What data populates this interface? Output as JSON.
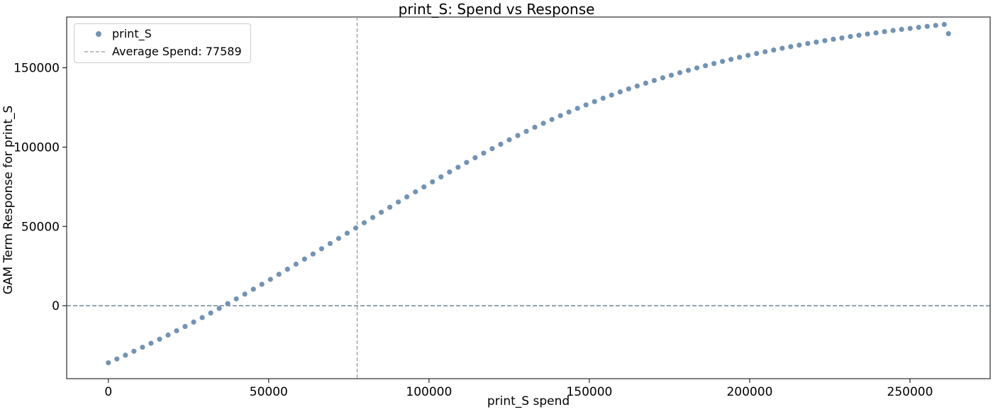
{
  "chart_data": {
    "type": "scatter",
    "title": "print_S: Spend vs Response",
    "xlabel": "print_S spend",
    "ylabel": "GAM Term Response for print_S",
    "xlim": [
      -13000,
      275000
    ],
    "ylim": [
      -46000,
      182000
    ],
    "xticks": [
      0,
      50000,
      100000,
      150000,
      200000,
      250000
    ],
    "yticks": [
      0,
      50000,
      100000,
      150000
    ],
    "grid": false,
    "legend_position": "top-left",
    "series": [
      {
        "name": "print_S",
        "color": "#7393b3",
        "points": [
          [
            0,
            -36000
          ],
          [
            2660,
            -33600
          ],
          [
            5320,
            -31200
          ],
          [
            7980,
            -28700
          ],
          [
            10640,
            -26200
          ],
          [
            13300,
            -23700
          ],
          [
            15960,
            -21100
          ],
          [
            18620,
            -18500
          ],
          [
            21280,
            -15800
          ],
          [
            23940,
            -13100
          ],
          [
            26600,
            -10300
          ],
          [
            29260,
            -7500
          ],
          [
            31920,
            -4600
          ],
          [
            34580,
            -1700
          ],
          [
            37240,
            1300
          ],
          [
            39900,
            4300
          ],
          [
            42560,
            7300
          ],
          [
            45220,
            10400
          ],
          [
            47880,
            13500
          ],
          [
            50540,
            16600
          ],
          [
            53200,
            19800
          ],
          [
            55860,
            23000
          ],
          [
            58520,
            26200
          ],
          [
            61180,
            29400
          ],
          [
            63840,
            32600
          ],
          [
            66500,
            35900
          ],
          [
            69160,
            39200
          ],
          [
            71820,
            42400
          ],
          [
            74480,
            45700
          ],
          [
            77140,
            49000
          ],
          [
            79800,
            52300
          ],
          [
            82460,
            55600
          ],
          [
            85120,
            58900
          ],
          [
            87780,
            62100
          ],
          [
            90440,
            65400
          ],
          [
            93100,
            68600
          ],
          [
            95760,
            71800
          ],
          [
            98420,
            74900
          ],
          [
            101080,
            78100
          ],
          [
            103740,
            81200
          ],
          [
            106400,
            84300
          ],
          [
            109060,
            87300
          ],
          [
            111720,
            90300
          ],
          [
            114380,
            93300
          ],
          [
            117040,
            96200
          ],
          [
            119700,
            99000
          ],
          [
            122360,
            101800
          ],
          [
            125020,
            104600
          ],
          [
            127680,
            107300
          ],
          [
            130340,
            109900
          ],
          [
            133000,
            112500
          ],
          [
            135660,
            115000
          ],
          [
            138320,
            117400
          ],
          [
            140980,
            119800
          ],
          [
            143640,
            122100
          ],
          [
            146300,
            124400
          ],
          [
            148960,
            126600
          ],
          [
            151620,
            128700
          ],
          [
            154280,
            130800
          ],
          [
            156940,
            132800
          ],
          [
            159600,
            134800
          ],
          [
            162260,
            136700
          ],
          [
            164920,
            138500
          ],
          [
            167580,
            140300
          ],
          [
            170240,
            142000
          ],
          [
            172900,
            143700
          ],
          [
            175560,
            145300
          ],
          [
            178220,
            146900
          ],
          [
            180880,
            148400
          ],
          [
            183540,
            149900
          ],
          [
            186200,
            151300
          ],
          [
            188860,
            152700
          ],
          [
            191520,
            154000
          ],
          [
            194180,
            155300
          ],
          [
            196840,
            156600
          ],
          [
            199500,
            157800
          ],
          [
            202160,
            159000
          ],
          [
            204820,
            160100
          ],
          [
            207480,
            161200
          ],
          [
            210140,
            162300
          ],
          [
            212800,
            163300
          ],
          [
            215460,
            164300
          ],
          [
            218120,
            165300
          ],
          [
            220780,
            166200
          ],
          [
            223440,
            167100
          ],
          [
            226100,
            168000
          ],
          [
            228760,
            168800
          ],
          [
            231420,
            169700
          ],
          [
            234080,
            170500
          ],
          [
            236740,
            171300
          ],
          [
            239400,
            172000
          ],
          [
            242060,
            172800
          ],
          [
            244720,
            173500
          ],
          [
            247380,
            174200
          ],
          [
            250040,
            174800
          ],
          [
            252700,
            175500
          ],
          [
            255360,
            176100
          ],
          [
            258020,
            176700
          ],
          [
            260680,
            177300
          ],
          [
            262000,
            171500
          ]
        ]
      }
    ],
    "reference_lines": {
      "vertical": {
        "x": 77589,
        "label": "Average Spend: 77589",
        "color": "#999999"
      },
      "horizontal": {
        "y": 0,
        "color": "#4f6b85"
      }
    }
  },
  "legend": {
    "series_label": "print_S",
    "avg_label": "Average Spend: 77589"
  }
}
